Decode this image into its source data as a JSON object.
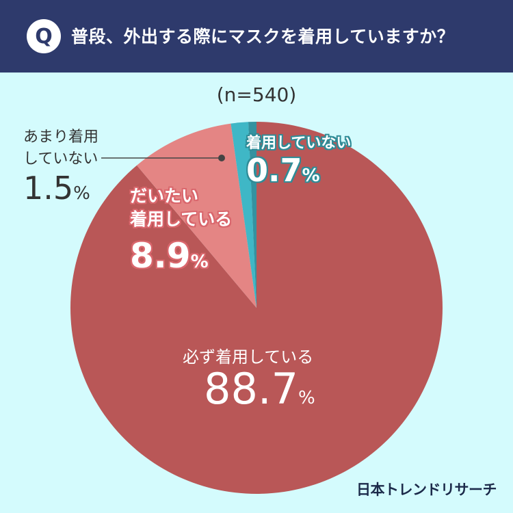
{
  "header": {
    "badge": "Q",
    "question": "普段、外出する際にマスクを着用していますか？"
  },
  "chart_data": {
    "type": "pie",
    "title": "普段、外出する際にマスクを着用していますか？",
    "sample_size": "(n=540)",
    "start": "12 o'clock",
    "direction": "clockwise",
    "slices": [
      {
        "label_line1": "必ず着用している",
        "label_line2": "",
        "value": 88.7,
        "value_text": "88.7",
        "unit": "%",
        "color": "#b95757"
      },
      {
        "label_line1": "だいたい",
        "label_line2": "着用している",
        "value": 8.9,
        "value_text": "8.9",
        "unit": "%",
        "color": "#e48584"
      },
      {
        "label_line1": "あまり着用",
        "label_line2": "していない",
        "value": 1.5,
        "value_text": "1.5",
        "unit": "%",
        "color": "#3fb7c6"
      },
      {
        "label_line1": "着用していない",
        "label_line2": "",
        "value": 0.7,
        "value_text": "0.7",
        "unit": "%",
        "color": "#3492a0"
      }
    ]
  },
  "brand": "日本トレンドリサーチ"
}
